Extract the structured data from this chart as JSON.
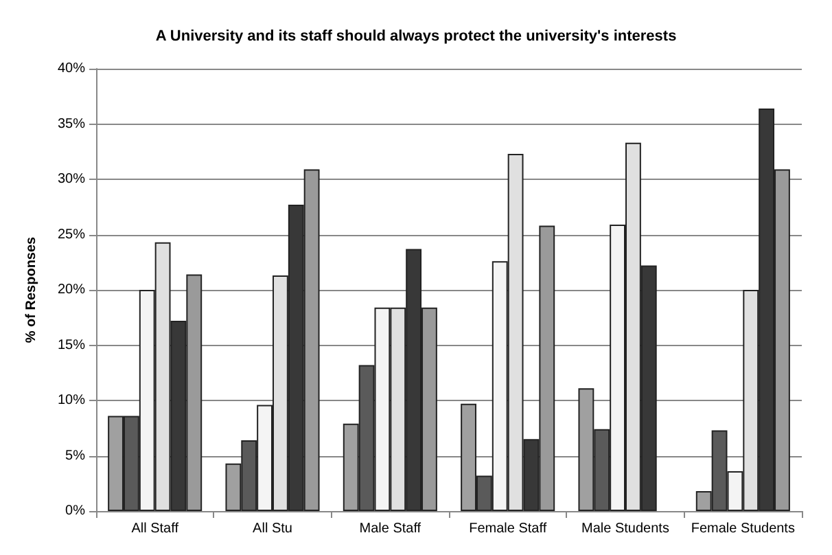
{
  "chart_data": {
    "type": "bar",
    "title": "A University and its staff should always protect the university's interests",
    "ylabel": "% of Responses",
    "categories": [
      "All Staff",
      "All Stu",
      "Male Staff",
      "Female Staff",
      "Male Students",
      "Female Students"
    ],
    "series": [
      {
        "color": "#a0a0a0",
        "values": [
          8.6,
          4.3,
          7.9,
          9.7,
          11.1,
          1.8
        ]
      },
      {
        "color": "#5a5a5a",
        "values": [
          8.6,
          6.4,
          13.2,
          3.2,
          7.4,
          7.3
        ]
      },
      {
        "color": "#f4f4f4",
        "values": [
          20.0,
          9.6,
          18.4,
          22.6,
          25.9,
          3.6
        ]
      },
      {
        "color": "#e0e0e0",
        "values": [
          24.3,
          21.3,
          18.4,
          32.3,
          33.3,
          20.0
        ]
      },
      {
        "color": "#383838",
        "values": [
          17.2,
          27.7,
          23.7,
          6.5,
          22.2,
          36.4
        ]
      },
      {
        "color": "#9a9a9a",
        "values": [
          21.4,
          30.9,
          18.4,
          25.8,
          null,
          30.9
        ]
      }
    ],
    "ylim": [
      0,
      40
    ],
    "yticks": [
      {
        "value": 0,
        "label": "0%"
      },
      {
        "value": 5,
        "label": "5%"
      },
      {
        "value": 10,
        "label": "10%"
      },
      {
        "value": 15,
        "label": "15%"
      },
      {
        "value": 20,
        "label": "20%"
      },
      {
        "value": 25,
        "label": "25%"
      },
      {
        "value": 30,
        "label": "30%"
      },
      {
        "value": 35,
        "label": "35%"
      },
      {
        "value": 40,
        "label": "40%"
      }
    ],
    "grid": "y"
  }
}
